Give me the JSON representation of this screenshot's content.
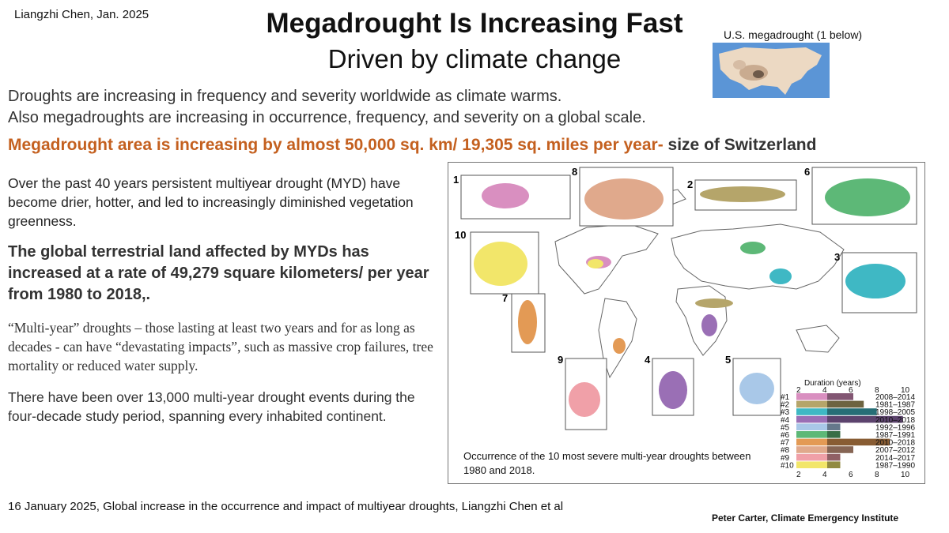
{
  "author_date": "Liangzhi Chen, Jan. 2025",
  "title": "Megadrought Is Increasing Fast",
  "subtitle": "Driven by climate change",
  "inset": {
    "label": "U.S. megadrought (1 below)"
  },
  "intro": [
    "Droughts are increasing in frequency and severity worldwide as climate warms.",
    "Also megadroughts are increasing in occurrence, frequency, and severity on a global scale."
  ],
  "highlight": {
    "main": "Megadrought area is increasing by almost 50,000 sq. km/ 19,305 sq. miles per year-",
    "tail": " size of Switzerland"
  },
  "paragraphs": {
    "p1": "Over the past 40 years persistent multiyear drought (MYD) have become drier, hotter, and led to increasingly diminished vegetation greenness.",
    "p2": "The global terrestrial land affected by MYDs has increased at a rate of 49,279 square kilometers/ per year from 1980 to 2018,.",
    "p3": "“Multi-year” droughts – those lasting at least two years and for as long as decades - can have “devastating impacts”, such as massive crop failures, tree mortality or reduced water supply.",
    "p4": "There have been over 13,000 multi-year drought events during the four-decade study period, spanning every inhabited continent."
  },
  "figure": {
    "caption": "Occurrence of the 10 most severe multi-year droughts between 1980 and 2018.",
    "panel_numbers": [
      "1",
      "8",
      "2",
      "6",
      "10",
      "3",
      "7",
      "9",
      "4",
      "5"
    ],
    "legend": {
      "title": "Duration (years)",
      "ticks": [
        "2",
        "4",
        "6",
        "8",
        "10"
      ],
      "rows": [
        {
          "id": "#1",
          "period": "2008–2014",
          "duration": 6,
          "color": "#d98fc0"
        },
        {
          "id": "#2",
          "period": "1981–1987",
          "duration": 6.8,
          "color": "#b5a56a"
        },
        {
          "id": "#3",
          "period": "1998–2005",
          "duration": 7.8,
          "color": "#3fb8c4"
        },
        {
          "id": "#4",
          "period": "2010–2018",
          "duration": 9.8,
          "color": "#9a6fb5"
        },
        {
          "id": "#5",
          "period": "1992–1996",
          "duration": 5,
          "color": "#a9c8e8"
        },
        {
          "id": "#6",
          "period": "1987–1991",
          "duration": 5,
          "color": "#5db877"
        },
        {
          "id": "#7",
          "period": "2010–2018",
          "duration": 8.8,
          "color": "#e39a55"
        },
        {
          "id": "#8",
          "period": "2007–2012",
          "duration": 6,
          "color": "#e0a98c"
        },
        {
          "id": "#9",
          "period": "2014–2017",
          "duration": 5,
          "color": "#f0a0a8"
        },
        {
          "id": "#10",
          "period": "1987–1990",
          "duration": 5,
          "color": "#f2e66a"
        }
      ]
    }
  },
  "citation": "16 January 2025, Global increase in the occurrence and impact of multiyear droughts, Liangzhi Chen et al",
  "credit": "Peter Carter,  Climate Emergency Institute"
}
